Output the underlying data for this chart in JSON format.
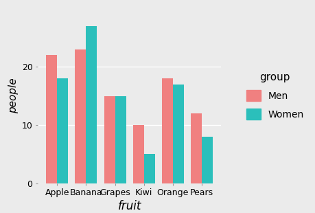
{
  "categories": [
    "Apple",
    "Banana",
    "Grapes",
    "Kiwi",
    "Orange",
    "Pears"
  ],
  "men_values": [
    22,
    23,
    15,
    10,
    18,
    12
  ],
  "women_values": [
    18,
    27,
    15,
    5,
    17,
    8
  ],
  "men_color": "#F08080",
  "women_color": "#2BBFBB",
  "xlabel": "fruit",
  "ylabel": "people",
  "ylim": [
    0,
    30
  ],
  "yticks": [
    0,
    10,
    20
  ],
  "background_color": "#EBEBEB",
  "grid_color": "#FFFFFF",
  "legend_title": "group",
  "legend_labels": [
    "Men",
    "Women"
  ],
  "bar_width": 0.38,
  "xlabel_fontsize": 12,
  "ylabel_fontsize": 11,
  "legend_title_fontsize": 11,
  "legend_label_fontsize": 10,
  "tick_fontsize": 9
}
